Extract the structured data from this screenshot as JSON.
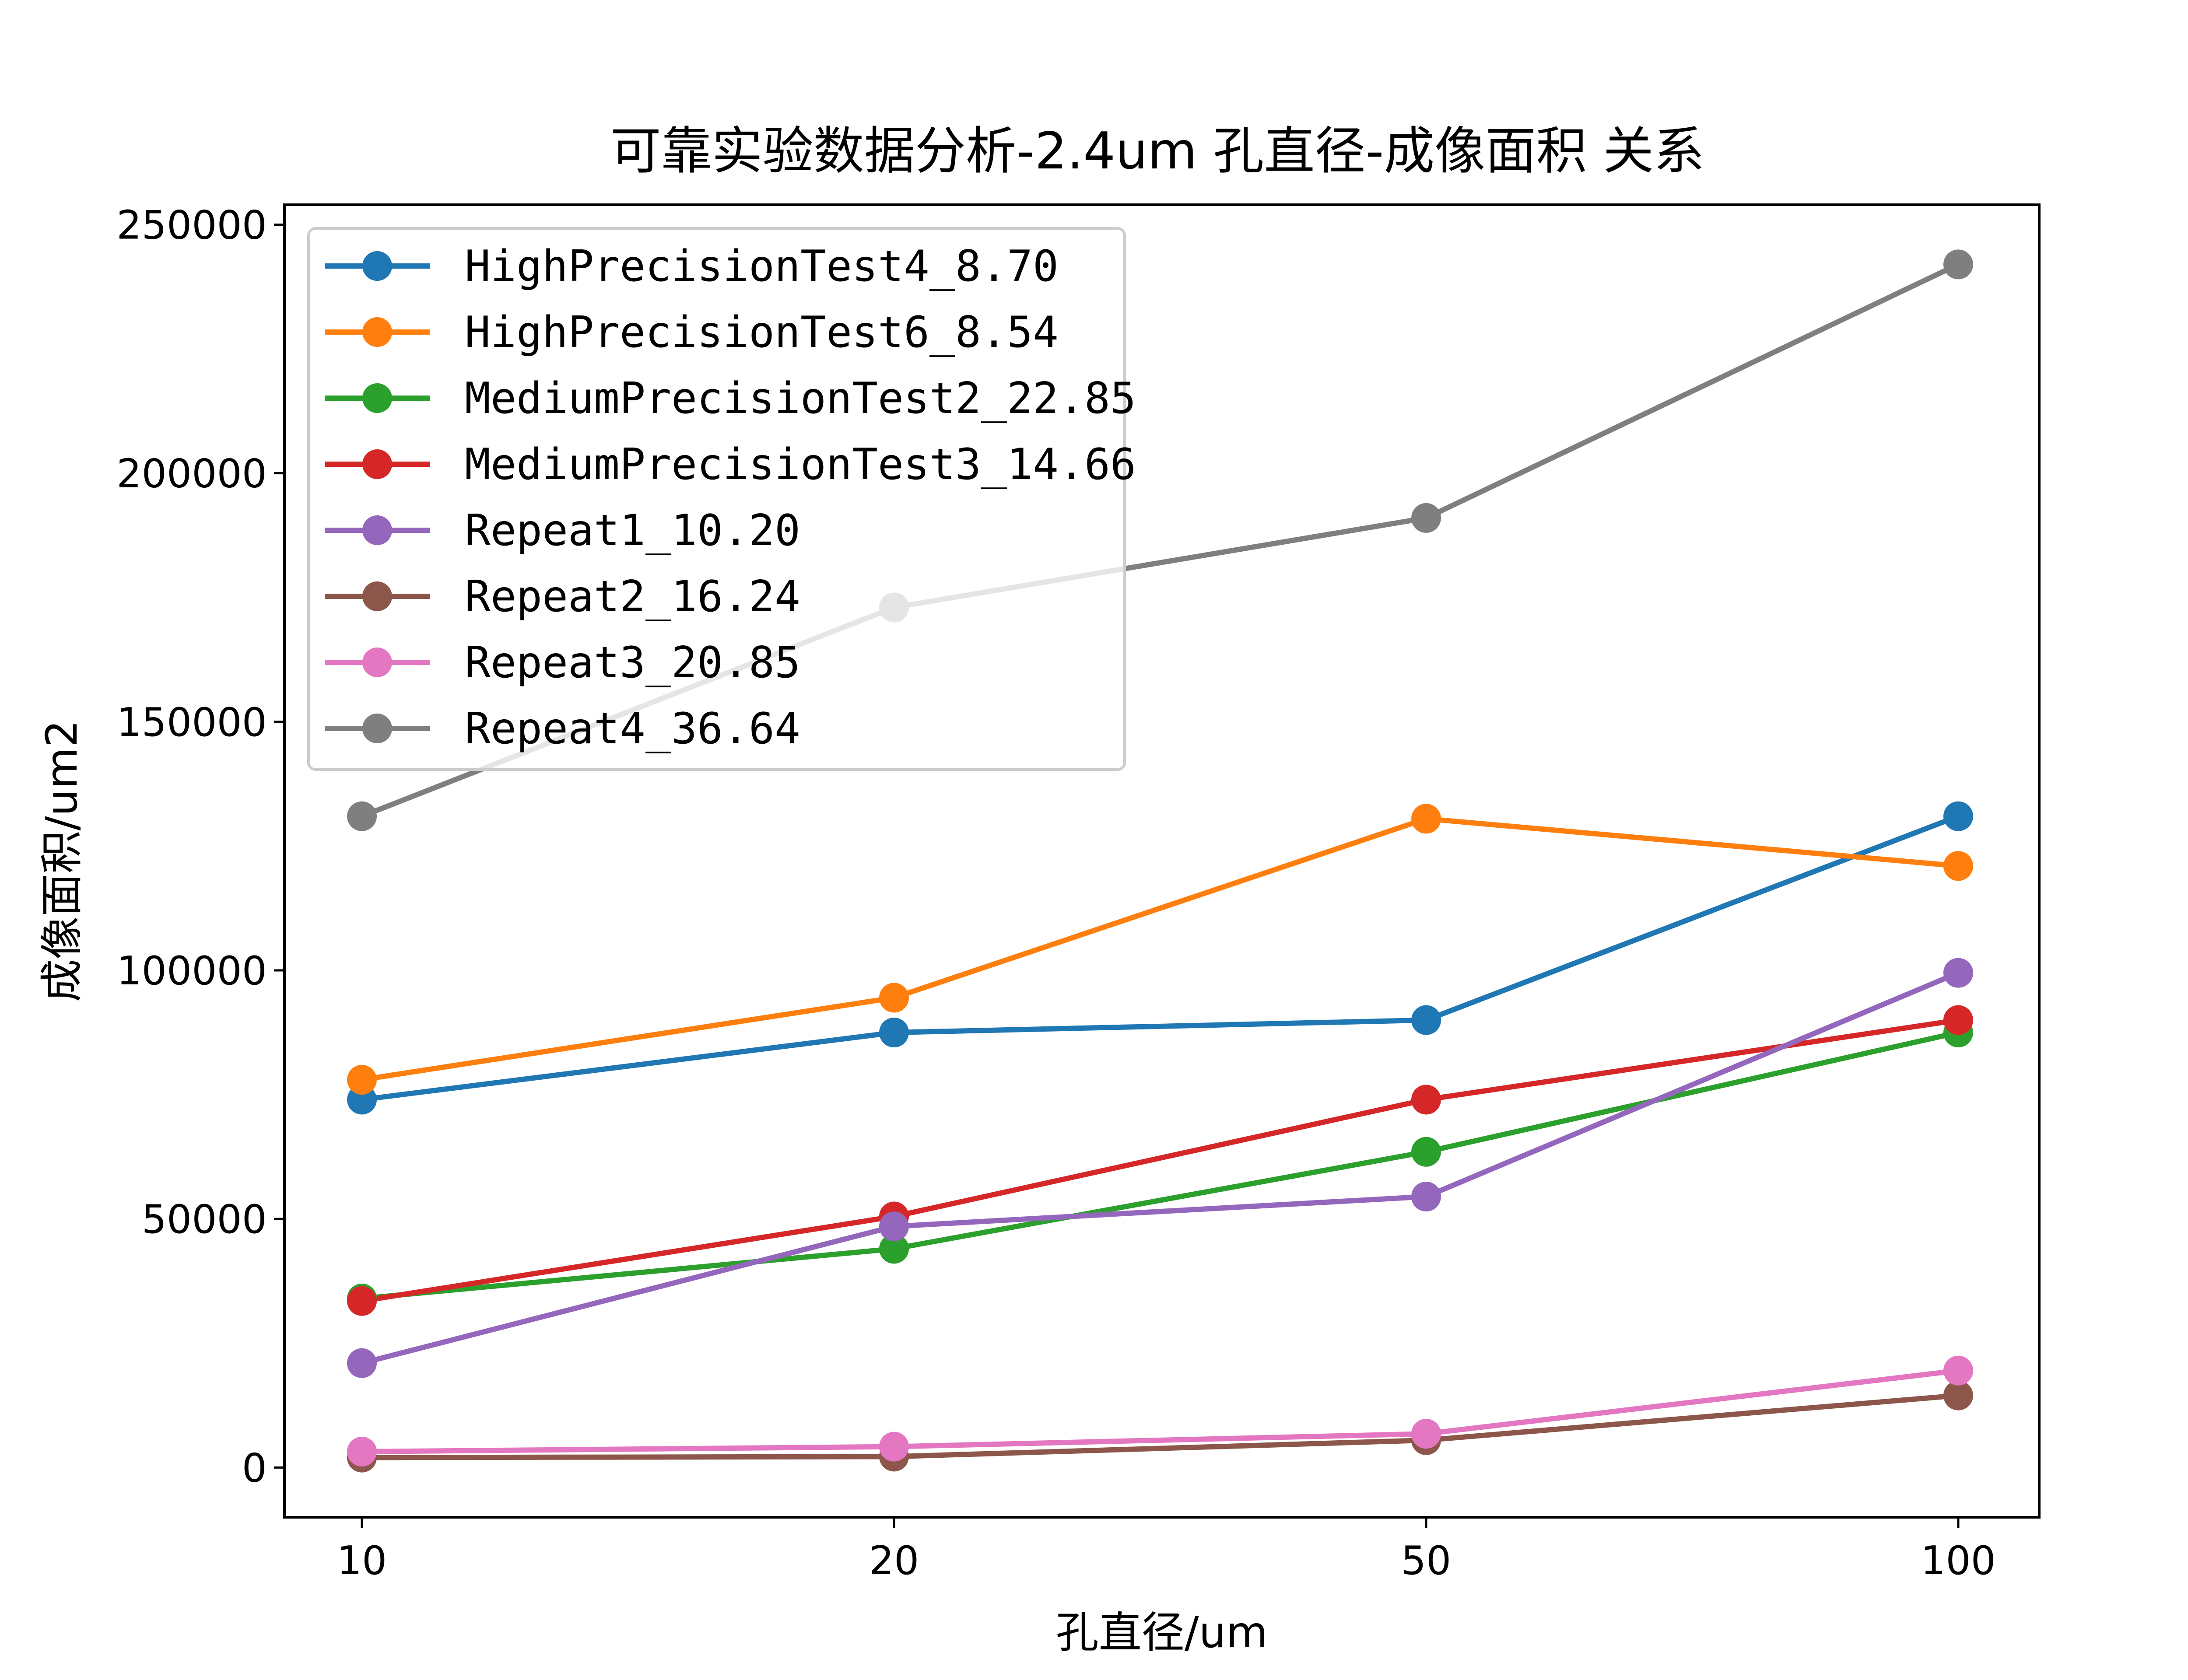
{
  "chart_data": {
    "type": "line",
    "title": "可靠实验数据分析-2.4um 孔直径-成像面积 关系",
    "xlabel": "孔直径/um",
    "ylabel": "成像面积/um2",
    "x": [
      "10",
      "20",
      "50",
      "100"
    ],
    "yticks": [
      0,
      50000,
      100000,
      150000,
      200000,
      250000
    ],
    "ylim": [
      -10000,
      254000
    ],
    "grid": false,
    "legend_position": "upper-left",
    "series": [
      {
        "name": "HighPrecisionTest4_8.70",
        "color": "#1f77b4",
        "values": [
          74000,
          87500,
          90000,
          131000
        ]
      },
      {
        "name": "HighPrecisionTest6_8.54",
        "color": "#ff7f0e",
        "values": [
          78000,
          94500,
          130500,
          121000
        ]
      },
      {
        "name": "MediumPrecisionTest2_22.85",
        "color": "#2ca02c",
        "values": [
          34000,
          44000,
          63500,
          87500
        ]
      },
      {
        "name": "MediumPrecisionTest3_14.66",
        "color": "#d62728",
        "values": [
          33500,
          50500,
          74000,
          90000
        ]
      },
      {
        "name": "Repeat1_10.20",
        "color": "#9467bd",
        "values": [
          21000,
          48500,
          54500,
          99500
        ]
      },
      {
        "name": "Repeat2_16.24",
        "color": "#8c564b",
        "values": [
          2000,
          2200,
          5500,
          14500
        ]
      },
      {
        "name": "Repeat3_20.85",
        "color": "#e377c2",
        "values": [
          3200,
          4200,
          6800,
          19500
        ]
      },
      {
        "name": "Repeat4_36.64",
        "color": "#7f7f7f",
        "values": [
          131000,
          173000,
          191000,
          242000
        ]
      }
    ]
  }
}
